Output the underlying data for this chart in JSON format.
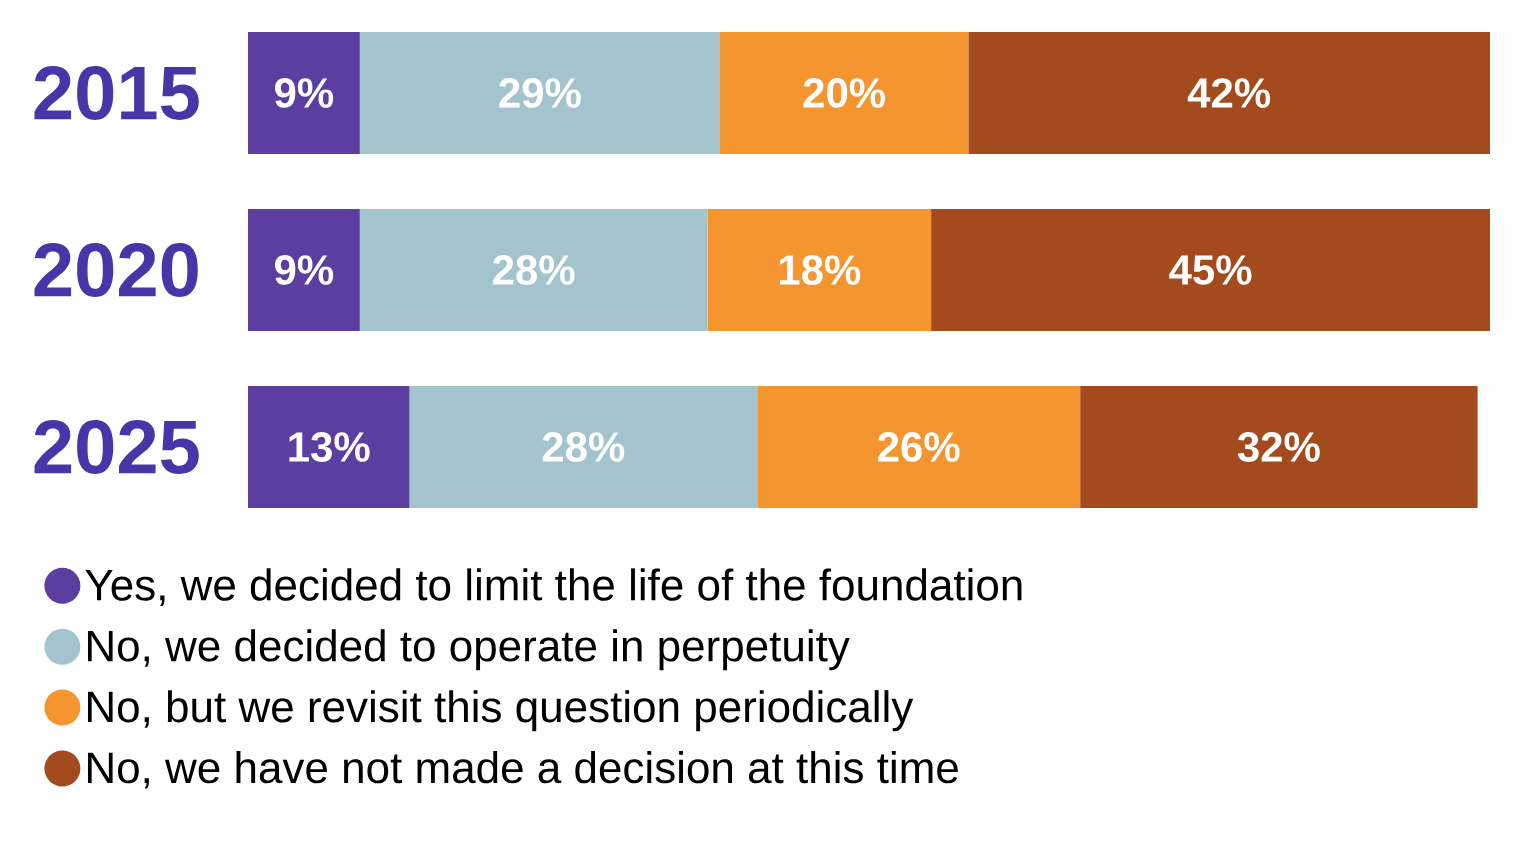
{
  "chart_data": {
    "type": "bar",
    "orientation": "horizontal",
    "stacked": true,
    "legend": "bottom",
    "categories": [
      "2015",
      "2020",
      "2025"
    ],
    "series": [
      {
        "name": "Yes, we decided to limit the life of the foundation",
        "color": "#5b3ea0",
        "values": [
          9,
          9,
          13
        ],
        "value_labels": [
          "9%",
          "9%",
          "13%"
        ]
      },
      {
        "name": "No, we decided to operate in perpetuity",
        "color": "#a3c4cc",
        "values": [
          29,
          28,
          28
        ],
        "value_labels": [
          "29%",
          "28%",
          "28%"
        ]
      },
      {
        "name": "No, but we revisit this question periodically",
        "color": "#f4952f",
        "values": [
          20,
          18,
          26
        ],
        "value_labels": [
          "20%",
          "18%",
          "26%"
        ]
      },
      {
        "name": "No, we have not made a decision at this time",
        "color": "#a44b1e",
        "values": [
          42,
          45,
          32
        ],
        "value_labels": [
          "42%",
          "45%",
          "32%"
        ]
      }
    ]
  }
}
